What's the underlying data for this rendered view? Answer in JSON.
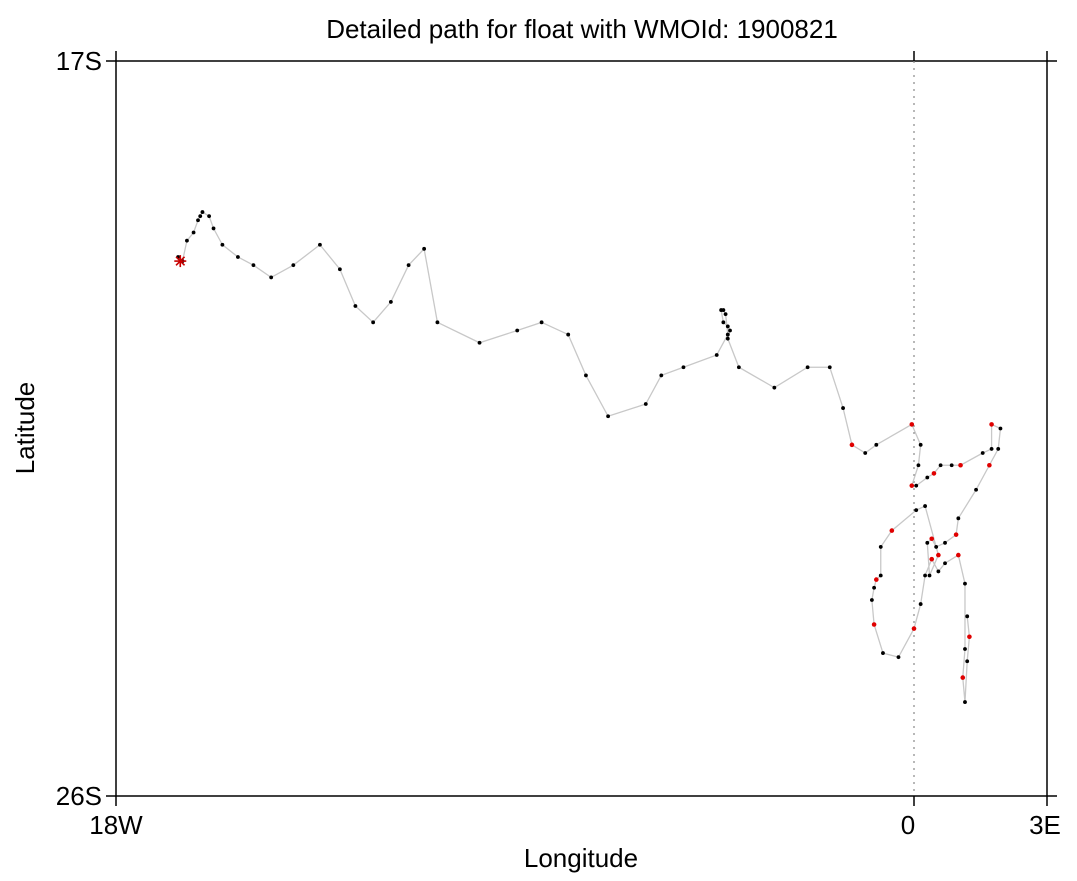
{
  "chart_data": {
    "type": "scatter",
    "title": "Detailed path for float with WMOId: 1900821",
    "xlabel": "Longitude",
    "ylabel": "Latitude",
    "xlim": [
      -18,
      3
    ],
    "ylim": [
      -26,
      -17
    ],
    "x_ticks": [
      {
        "value": -18,
        "label": "18W"
      },
      {
        "value": 0,
        "label": "0"
      },
      {
        "value": 3,
        "label": "3E"
      }
    ],
    "y_ticks": [
      {
        "value": -17,
        "label": "17S"
      },
      {
        "value": -26,
        "label": "26S"
      }
    ],
    "reference_line": {
      "x": 0,
      "style": "dotted"
    },
    "colors": {
      "path": "#c8c8c8",
      "point": "#000000",
      "recent_point": "#e00000",
      "marker": "#c80000"
    },
    "series": [
      {
        "values": [
          [
            -16.6,
            -19.4
          ],
          [
            -16.5,
            -19.45
          ],
          [
            -16.4,
            -19.2
          ],
          [
            -16.25,
            -19.1
          ],
          [
            -16.15,
            -18.95
          ],
          [
            -16.1,
            -18.9
          ],
          [
            -16.05,
            -18.85
          ],
          [
            -15.9,
            -18.9
          ],
          [
            -15.8,
            -19.05
          ],
          [
            -15.6,
            -19.25
          ],
          [
            -15.25,
            -19.4
          ],
          [
            -14.9,
            -19.5
          ],
          [
            -14.5,
            -19.65
          ],
          [
            -14,
            -19.5
          ],
          [
            -13.4,
            -19.25
          ],
          [
            -12.95,
            -19.55
          ],
          [
            -12.6,
            -20.0
          ],
          [
            -12.2,
            -20.2
          ],
          [
            -11.8,
            -19.95
          ],
          [
            -11.4,
            -19.5
          ],
          [
            -11.05,
            -19.3
          ],
          [
            -10.75,
            -20.2
          ],
          [
            -9.8,
            -20.45
          ],
          [
            -8.95,
            -20.3
          ],
          [
            -8.4,
            -20.2
          ],
          [
            -7.8,
            -20.35
          ],
          [
            -7.4,
            -20.85
          ],
          [
            -6.9,
            -21.35
          ],
          [
            -6.05,
            -21.2
          ],
          [
            -5.7,
            -20.85
          ],
          [
            -5.2,
            -20.75
          ],
          [
            -4.45,
            -20.6
          ],
          [
            -4.2,
            -20.35
          ],
          [
            -4.25,
            -20.1
          ],
          [
            -4.3,
            -20.05
          ],
          [
            -4.35,
            -20.05
          ],
          [
            -4.3,
            -20.2
          ],
          [
            -4.2,
            -20.25
          ],
          [
            -4.15,
            -20.3
          ],
          [
            -4.2,
            -20.4
          ],
          [
            -3.95,
            -20.75
          ],
          [
            -3.15,
            -21.0
          ],
          [
            -2.4,
            -20.75
          ],
          [
            -1.9,
            -20.75
          ],
          [
            -1.6,
            -21.25
          ],
          [
            -1.4,
            -21.7
          ],
          [
            -1.1,
            -21.8
          ],
          [
            -0.85,
            -21.7
          ],
          [
            -0.05,
            -21.45
          ],
          [
            0.15,
            -21.7
          ],
          [
            0.1,
            -21.95
          ],
          [
            -0.05,
            -22.2
          ],
          [
            0.05,
            -22.2
          ],
          [
            0.3,
            -22.1
          ],
          [
            0.45,
            -22.05
          ],
          [
            0.6,
            -21.95
          ],
          [
            0.85,
            -21.95
          ],
          [
            1.05,
            -21.95
          ],
          [
            1.55,
            -21.8
          ],
          [
            1.75,
            -21.75
          ],
          [
            1.75,
            -21.45
          ],
          [
            1.95,
            -21.5
          ],
          [
            1.9,
            -21.75
          ],
          [
            1.7,
            -21.95
          ],
          [
            1.4,
            -22.25
          ],
          [
            1.0,
            -22.6
          ],
          [
            0.95,
            -22.8
          ],
          [
            0.7,
            -22.9
          ],
          [
            0.5,
            -22.95
          ],
          [
            0.4,
            -22.85
          ],
          [
            0.3,
            -22.9
          ],
          [
            0.35,
            -23.3
          ],
          [
            0.55,
            -23.05
          ],
          [
            0.25,
            -22.45
          ],
          [
            0.05,
            -22.5
          ],
          [
            -0.5,
            -22.75
          ],
          [
            -0.75,
            -22.95
          ],
          [
            -0.75,
            -23.3
          ],
          [
            -0.85,
            -23.35
          ],
          [
            -0.9,
            -23.45
          ],
          [
            -0.95,
            -23.6
          ],
          [
            -0.9,
            -23.9
          ],
          [
            -0.7,
            -24.25
          ],
          [
            -0.35,
            -24.3
          ],
          [
            0.0,
            -23.95
          ],
          [
            0.15,
            -23.65
          ],
          [
            0.25,
            -23.3
          ],
          [
            0.4,
            -23.1
          ],
          [
            0.55,
            -23.25
          ],
          [
            0.7,
            -23.15
          ],
          [
            1.0,
            -23.05
          ],
          [
            1.15,
            -23.4
          ],
          [
            1.15,
            -24.2
          ],
          [
            1.1,
            -24.55
          ],
          [
            1.15,
            -24.85
          ],
          [
            1.2,
            -24.35
          ],
          [
            1.25,
            -24.05
          ],
          [
            1.2,
            -23.8
          ]
        ],
        "recent_from_index": 45
      }
    ],
    "red_markers": [
      [
        -16.65,
        -19.45
      ]
    ],
    "deployment_marker": [
      -16.55,
      -19.45
    ]
  }
}
